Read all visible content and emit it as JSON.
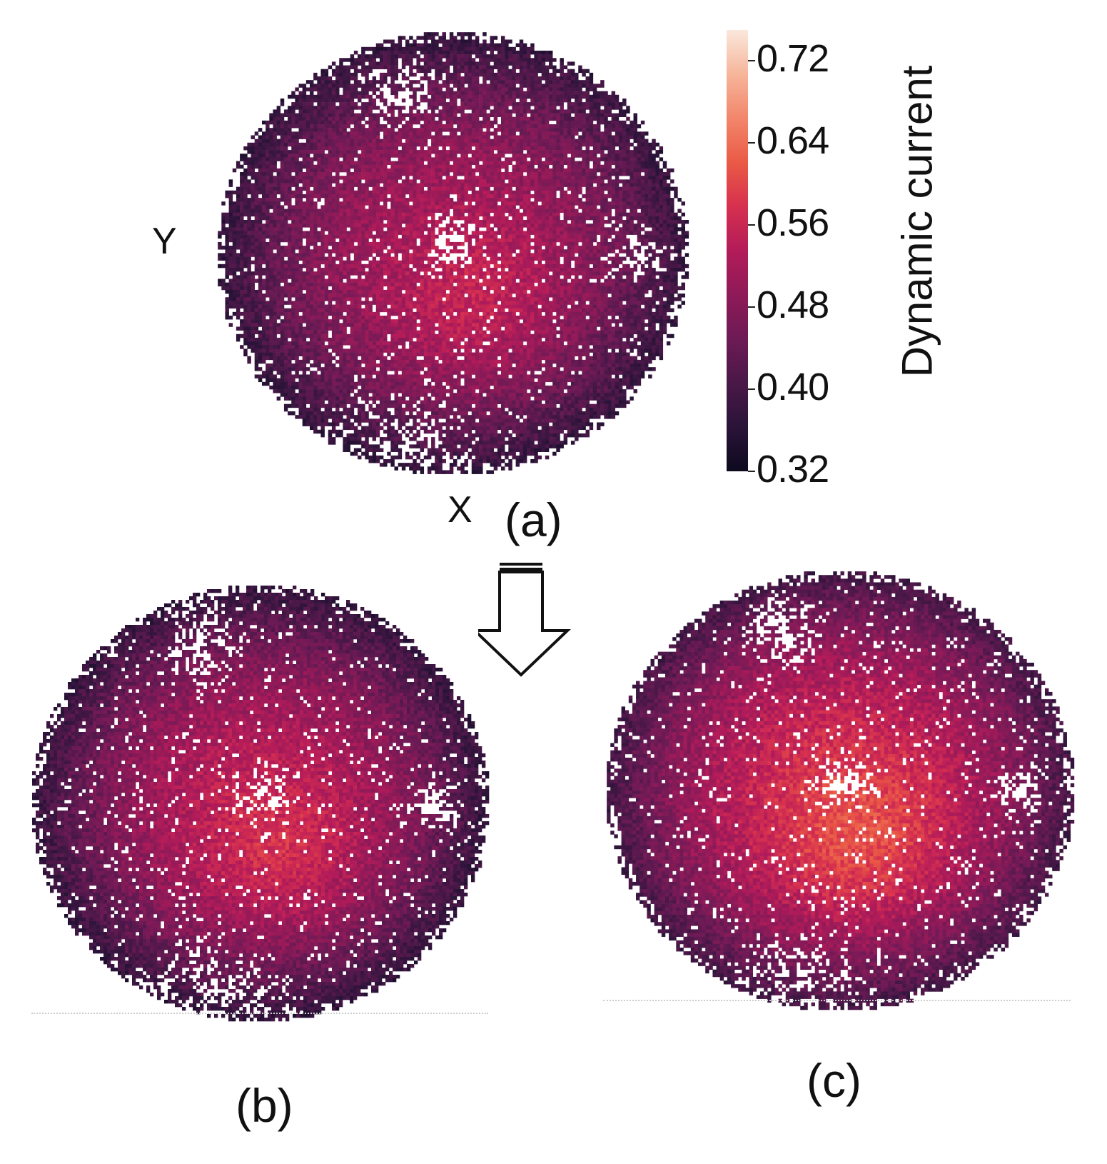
{
  "chart_data": [
    {
      "type": "heatmap",
      "panel_label": "(a)",
      "xlabel": "X",
      "ylabel": "Y",
      "colorbar": {
        "label": "Dynamic current",
        "range": [
          0.32,
          0.75
        ],
        "ticks": [
          "0.32",
          "0.40",
          "0.48",
          "0.56",
          "0.64",
          "0.72"
        ],
        "colormap": "rocket"
      },
      "missing_values_shown_as": "white",
      "field_description_values": {
        "edge_level": 0.37,
        "center_level": 0.52,
        "peak_level": 0.56
      }
    },
    {
      "type": "heatmap",
      "panel_label": "(b)",
      "colormap": "rocket",
      "range": [
        0.32,
        0.75
      ],
      "field_description_values": {
        "edge_level": 0.37,
        "center_level": 0.54,
        "peak_level": 0.58
      }
    },
    {
      "type": "heatmap",
      "panel_label": "(c)",
      "colormap": "rocket",
      "range": [
        0.32,
        0.75
      ],
      "field_description_values": {
        "edge_level": 0.39,
        "center_level": 0.57,
        "peak_level": 0.62
      }
    }
  ],
  "colors": {
    "colormap_stops": [
      "#0d0a1e",
      "#2a1338",
      "#4a1848",
      "#6d1a55",
      "#8e1a58",
      "#b31b59",
      "#d6304f",
      "#ea5a45",
      "#f2866b",
      "#f6b59a",
      "#fae8dc"
    ],
    "arrow_stroke": "#111111",
    "background": "#ffffff"
  },
  "icons": {
    "down_arrow": "down-arrow-icon"
  }
}
